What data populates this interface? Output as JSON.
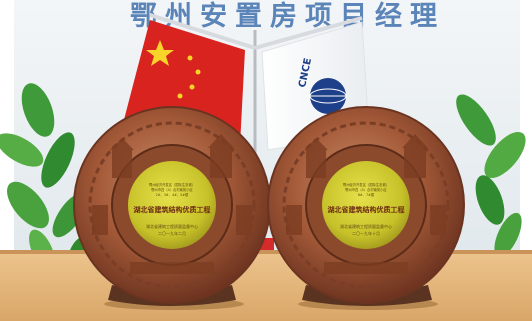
{
  "wall_sign": {
    "text": "鄂州安置房项目经理"
  },
  "flag_left": {
    "kind": "national flag"
  },
  "flag_right": {
    "logo_text": "CNCE"
  },
  "plaques": [
    {
      "award_title": "湖北省建筑结构优质工程",
      "issuer": "湖北省建筑工程质量监督中心",
      "date": "二〇一九年二月",
      "project_lines": [
        "鄂州经济开发区（国际生态城）",
        "鄂州市四（4）合村南苑小区",
        "2#、3#、4#、5#楼"
      ]
    },
    {
      "award_title": "湖北省建筑结构优质工程",
      "issuer": "湖北省建筑工程质量监督中心",
      "date": "二〇一九年十月",
      "project_lines": [
        "鄂州经济开发区（国际生态城）",
        "鄂州市四（4）合村南苑小区",
        "6#、7#楼"
      ]
    }
  ],
  "colors": {
    "wall": "#eaf0f4",
    "sign_blue": "#5b84b8",
    "flag_red": "#d8231e",
    "star_yellow": "#f8d32a",
    "copper": "#a45a38",
    "gold_center": "#c8c22a",
    "table": "#e5b67b",
    "leaf": "#3f9a3a"
  }
}
